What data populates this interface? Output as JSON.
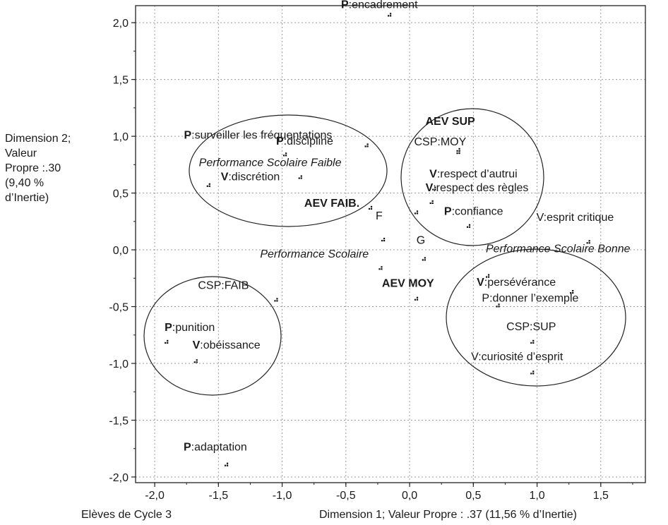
{
  "chart_data": {
    "type": "scatter",
    "xlabel": "Dimension 1; Valeur Propre : .37 (11,56  % d’Inertie)",
    "footer_left": "Elèves de Cycle 3",
    "ylabel_lines": [
      "Dimension 2;",
      "Valeur",
      "Propre :.30",
      "(9,40 %",
      "d’Inertie)"
    ],
    "xlim": [
      -2.15,
      1.85
    ],
    "ylim": [
      -2.05,
      2.15
    ],
    "xticks": [
      -2.0,
      -1.5,
      -1.0,
      -0.5,
      0.0,
      0.5,
      1.0,
      1.5
    ],
    "yticks": [
      -2.0,
      -1.5,
      -1.0,
      -0.5,
      0.0,
      0.5,
      1.0,
      1.5,
      2.0
    ],
    "xtick_labels": [
      "-2,0",
      "-1,5",
      "-1,0",
      "-0,5",
      "0,0",
      "0,5",
      "1,0",
      "1,5"
    ],
    "ytick_labels": [
      "-2,0",
      "-1,5",
      "-1,0",
      "-0,5",
      "0,0",
      "0,5",
      "1,0",
      "1,5",
      "2,0"
    ],
    "grid": true,
    "points": [
      {
        "prefix": "P",
        "label": ":encadrement",
        "x": -0.15,
        "y": 2.08,
        "bold": false,
        "italic": false
      },
      {
        "prefix": "P",
        "label": ":discipline",
        "x": -0.97,
        "y": 0.85,
        "bold": false,
        "italic": false
      },
      {
        "prefix": "P",
        "label": ":surveiller les fréquentations",
        "x": -0.33,
        "y": 0.93,
        "bold": false,
        "italic": false
      },
      {
        "prefix": "",
        "label": "Performance Scolaire Faible",
        "x": -0.85,
        "y": 0.65,
        "bold": false,
        "italic": true
      },
      {
        "prefix": "V",
        "label": ":discrétion",
        "x": -1.57,
        "y": 0.58,
        "bold": false,
        "italic": false
      },
      {
        "prefix": "",
        "label": "AEV FAIB.",
        "x": -0.3,
        "y": 0.38,
        "bold": true,
        "italic": false
      },
      {
        "prefix": "",
        "label": "AEV SUP",
        "x": 0.39,
        "y": 0.89,
        "bold": true,
        "italic": false
      },
      {
        "prefix": "",
        "label": "CSP:MOY",
        "x": 0.39,
        "y": 0.87,
        "bold": false,
        "italic": false
      },
      {
        "prefix": "V",
        "label": ":respect d’autrui",
        "x": 0.2,
        "y": 0.55,
        "bold": false,
        "italic": false
      },
      {
        "prefix": "V",
        "label": ":respect des règles",
        "x": 0.18,
        "y": 0.43,
        "bold": false,
        "italic": false
      },
      {
        "prefix": "",
        "label": "",
        "x": 0.06,
        "y": 0.34,
        "bold": false,
        "italic": false
      },
      {
        "prefix": "P",
        "label": ":confiance",
        "x": 0.47,
        "y": 0.22,
        "bold": false,
        "italic": false
      },
      {
        "prefix": "",
        "label": "V:esprit critique",
        "x": 1.41,
        "y": 0.08,
        "bold": false,
        "italic": false
      },
      {
        "prefix": "",
        "label": "F",
        "x": -0.2,
        "y": 0.1,
        "bold": false,
        "italic": false
      },
      {
        "prefix": "",
        "label": "G",
        "x": 0.12,
        "y": -0.07,
        "bold": false,
        "italic": false
      },
      {
        "prefix": "",
        "label": "Performance Scolaire",
        "x": -0.22,
        "y": -0.15,
        "bold": false,
        "italic": true
      },
      {
        "prefix": "",
        "label": "AEV MOY",
        "x": 0.06,
        "y": -0.42,
        "bold": true,
        "italic": false
      },
      {
        "prefix": "",
        "label": "Performance Scolaire Bonne",
        "x": 0.62,
        "y": -0.22,
        "bold": false,
        "italic": true
      },
      {
        "prefix": "V",
        "label": ":persévérance",
        "x": 1.28,
        "y": -0.36,
        "bold": false,
        "italic": false
      },
      {
        "prefix": "",
        "label": "P:donner l’exemple",
        "x": 0.7,
        "y": -0.48,
        "bold": false,
        "italic": false
      },
      {
        "prefix": "",
        "label": "CSP:SUP",
        "x": 0.97,
        "y": -0.8,
        "bold": false,
        "italic": false
      },
      {
        "prefix": "",
        "label": "V:curiosité d’esprit",
        "x": 0.97,
        "y": -1.07,
        "bold": false,
        "italic": false
      },
      {
        "prefix": "",
        "label": "CSP:FAIB",
        "x": -1.04,
        "y": -0.43,
        "bold": false,
        "italic": false
      },
      {
        "prefix": "P",
        "label": ":punition",
        "x": -1.9,
        "y": -0.8,
        "bold": false,
        "italic": false
      },
      {
        "prefix": "V",
        "label": ":obéissance",
        "x": -1.67,
        "y": -0.97,
        "bold": false,
        "italic": false
      },
      {
        "prefix": "P",
        "label": ":adaptation",
        "x": -1.43,
        "y": -1.88,
        "bold": false,
        "italic": false
      }
    ]
  }
}
